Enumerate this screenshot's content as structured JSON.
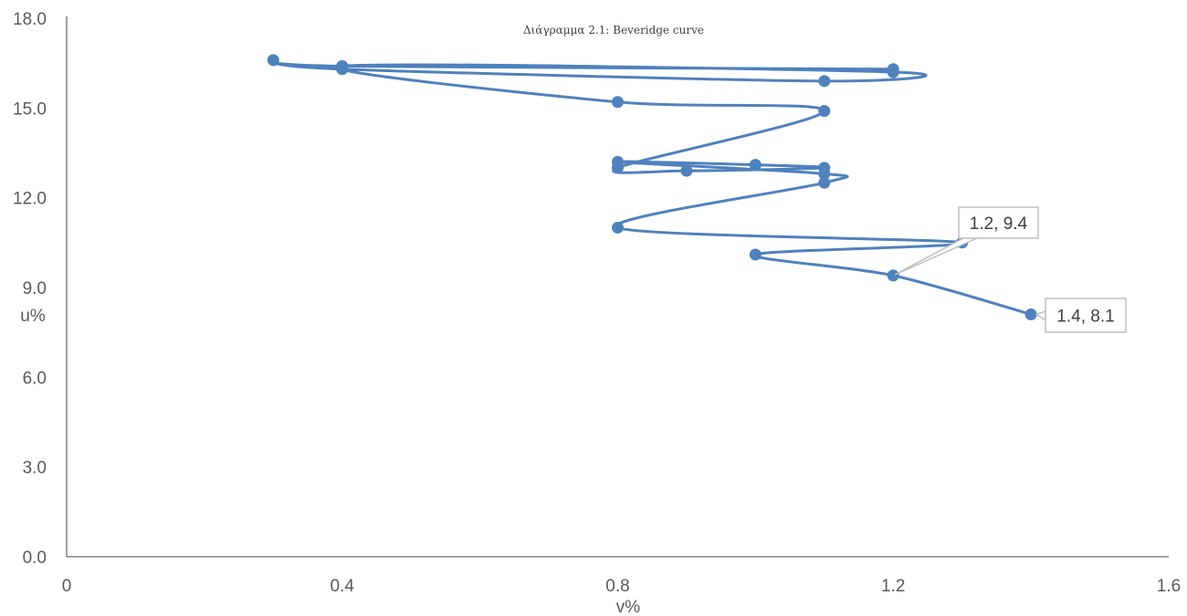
{
  "chart_data": {
    "type": "scatter",
    "title": "Διάγραμμα 2.1: Beveridge curve",
    "xlabel": "v%",
    "ylabel": "u%",
    "xlim": [
      0,
      1.6
    ],
    "ylim": [
      0,
      18
    ],
    "x_ticks": [
      "0",
      "0.4",
      "0.8",
      "1.2",
      "1.6"
    ],
    "y_ticks": [
      "0.0",
      "3.0",
      "6.0",
      "9.0",
      "12.0",
      "15.0",
      "18.0"
    ],
    "grid": false,
    "legend": "none",
    "series": [
      {
        "color": "#4f81bd",
        "smooth": true,
        "points": [
          {
            "x": 1.2,
            "y": 16.3
          },
          {
            "x": 0.4,
            "y": 16.4
          },
          {
            "x": 0.3,
            "y": 16.6
          },
          {
            "x": 0.4,
            "y": 16.3
          },
          {
            "x": 1.1,
            "y": 15.9
          },
          {
            "x": 1.2,
            "y": 16.2
          },
          {
            "x": 0.4,
            "y": 16.4
          },
          {
            "x": 0.8,
            "y": 15.2
          },
          {
            "x": 1.1,
            "y": 14.9
          },
          {
            "x": 0.8,
            "y": 13.0
          },
          {
            "x": 0.9,
            "y": 12.9
          },
          {
            "x": 1.1,
            "y": 13.0
          },
          {
            "x": 1.0,
            "y": 13.1
          },
          {
            "x": 0.8,
            "y": 13.2
          },
          {
            "x": 1.1,
            "y": 12.8
          },
          {
            "x": 1.1,
            "y": 12.5
          },
          {
            "x": 0.8,
            "y": 11.0
          },
          {
            "x": 1.3,
            "y": 10.5
          },
          {
            "x": 1.0,
            "y": 10.1
          },
          {
            "x": 1.2,
            "y": 9.4
          },
          {
            "x": 1.4,
            "y": 8.1
          }
        ]
      }
    ],
    "annotations": [
      {
        "text": "1.2, 9.4",
        "x": 1.2,
        "y": 9.4
      },
      {
        "text": "1.4, 8.1",
        "x": 1.4,
        "y": 8.1
      }
    ]
  }
}
